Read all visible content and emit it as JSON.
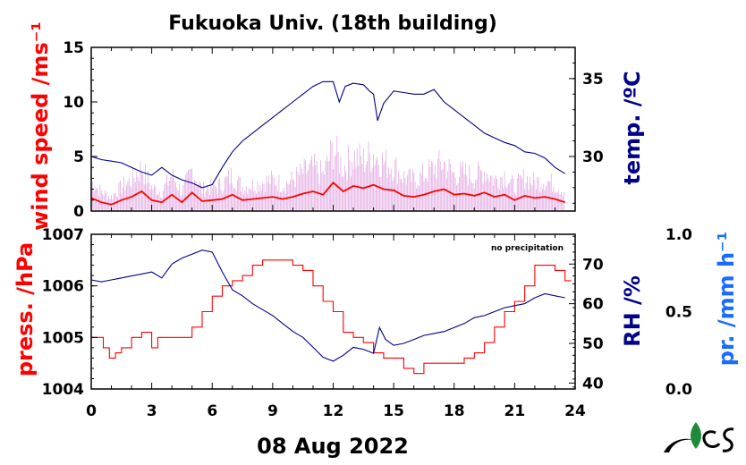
{
  "title": "Fukuoka Univ. (18th building)",
  "date_label": "08 Aug 2022",
  "colors": {
    "wind": "#ff0000",
    "wind_raw": "#cc66cc",
    "temp": "#00008b",
    "pressure": "#ff0000",
    "rh": "#00008b",
    "precip": "#1a6cff"
  },
  "top_panel": {
    "left_axis_label": "wind speed /ms⁻¹",
    "right_axis_label": "temp. /ºC"
  },
  "bottom_panel": {
    "left_axis_label": "press. /hPa",
    "right_axis_label": "RH /%",
    "far_right_axis_label": "pr. /mm h⁻¹",
    "annotation": "no precipitation"
  },
  "chart_data": [
    {
      "type": "line",
      "xlabel": "",
      "x_ticks": [
        "0",
        "3",
        "6",
        "9",
        "12",
        "15",
        "18",
        "21",
        "24"
      ],
      "xlim": [
        0,
        24
      ],
      "left_axis": {
        "label": "wind speed /ms⁻¹",
        "ylim": [
          0,
          15
        ],
        "ticks": [
          "0",
          "5",
          "10",
          "15"
        ]
      },
      "right_axis": {
        "label": "temp. /ºC",
        "ylim": [
          26.5,
          37
        ],
        "ticks": [
          "30",
          "35"
        ]
      },
      "series": [
        {
          "axis": "right",
          "color": "#00008b",
          "x": [
            0,
            0.5,
            1,
            1.5,
            2,
            2.5,
            3,
            3.5,
            4,
            4.5,
            5,
            5.5,
            6,
            6.5,
            7,
            7.5,
            8,
            8.5,
            9,
            9.5,
            10,
            10.5,
            11,
            11.5,
            12,
            12.3,
            12.6,
            13,
            13.5,
            13.8,
            14,
            14.2,
            14.5,
            15,
            15.5,
            16,
            16.5,
            17,
            17.5,
            18,
            18.5,
            19,
            19.5,
            20,
            20.5,
            21,
            21.5,
            22,
            22.5,
            23,
            23.5
          ],
          "y": [
            30.0,
            29.8,
            29.7,
            29.6,
            29.3,
            29.0,
            28.8,
            29.3,
            28.8,
            28.5,
            28.3,
            28.0,
            28.2,
            29.3,
            30.3,
            31.0,
            31.5,
            32.0,
            32.5,
            33.0,
            33.5,
            34.0,
            34.5,
            34.8,
            34.8,
            33.5,
            34.5,
            34.7,
            34.6,
            34.2,
            34.0,
            32.3,
            33.4,
            34.2,
            34.1,
            34.0,
            34.0,
            34.3,
            33.5,
            33.0,
            32.5,
            32.0,
            31.5,
            31.2,
            30.9,
            30.7,
            30.3,
            30.2,
            29.9,
            29.3,
            28.9
          ]
        },
        {
          "axis": "left",
          "color": "#ff0000",
          "x": [
            0,
            0.5,
            1,
            1.5,
            2,
            2.5,
            3,
            3.5,
            4,
            4.5,
            5,
            5.5,
            6,
            6.5,
            7,
            7.5,
            8,
            8.5,
            9,
            9.5,
            10,
            10.5,
            11,
            11.5,
            12,
            12.5,
            13,
            13.5,
            14,
            14.5,
            15,
            15.5,
            16,
            16.5,
            17,
            17.5,
            18,
            18.5,
            19,
            19.5,
            20,
            20.5,
            21,
            21.5,
            22,
            22.5,
            23,
            23.5
          ],
          "y": [
            1.2,
            0.8,
            0.6,
            1.0,
            1.3,
            1.8,
            1.0,
            0.8,
            1.5,
            0.8,
            1.7,
            0.9,
            1.0,
            1.1,
            1.5,
            1.0,
            1.1,
            1.2,
            1.3,
            1.1,
            1.3,
            1.6,
            1.8,
            1.5,
            2.6,
            1.8,
            2.3,
            2.1,
            2.4,
            2.0,
            1.9,
            1.4,
            1.3,
            1.5,
            1.8,
            2.0,
            1.5,
            1.6,
            1.4,
            1.7,
            1.3,
            1.5,
            1.0,
            1.4,
            1.2,
            1.3,
            1.1,
            0.8
          ]
        }
      ]
    },
    {
      "type": "line",
      "xlabel": "08 Aug 2022",
      "x_ticks": [
        "0",
        "3",
        "6",
        "9",
        "12",
        "15",
        "18",
        "21",
        "24"
      ],
      "xlim": [
        0,
        24
      ],
      "left_axis": {
        "label": "press. /hPa",
        "ylim": [
          1004,
          1007
        ],
        "ticks": [
          "1004",
          "1005",
          "1006",
          "1007"
        ]
      },
      "right_axis": {
        "label": "RH /%",
        "ylim": [
          38.5,
          77.5
        ],
        "ticks": [
          "40",
          "50",
          "60",
          "70"
        ]
      },
      "far_right_axis": {
        "label": "pr. /mm h⁻¹",
        "ylim": [
          0,
          1
        ],
        "ticks": [
          "0.0",
          "0.5",
          "1.0"
        ]
      },
      "series": [
        {
          "axis": "left",
          "color": "#ff0000",
          "x": [
            0,
            0.4,
            0.6,
            0.9,
            1.2,
            1.5,
            2.0,
            2.5,
            3.0,
            3.3,
            3.6,
            4.0,
            4.5,
            5.0,
            5.5,
            6.0,
            6.5,
            7.0,
            7.5,
            8.0,
            8.5,
            9.0,
            9.5,
            10.0,
            10.5,
            11.0,
            11.5,
            12.0,
            12.5,
            13.0,
            13.5,
            14.0,
            14.5,
            15.0,
            15.5,
            16.0,
            16.5,
            17.0,
            17.5,
            18.0,
            18.5,
            19.0,
            19.5,
            20.0,
            20.5,
            21.0,
            21.5,
            22.0,
            22.5,
            23.0,
            23.5,
            23.8
          ],
          "y": [
            1005.0,
            1005.0,
            1004.8,
            1004.6,
            1004.7,
            1004.8,
            1005.0,
            1005.1,
            1004.8,
            1005.0,
            1005.0,
            1005.0,
            1005.0,
            1005.2,
            1005.5,
            1005.8,
            1006.0,
            1006.1,
            1006.2,
            1006.4,
            1006.5,
            1006.5,
            1006.5,
            1006.4,
            1006.3,
            1006.0,
            1005.7,
            1005.5,
            1005.1,
            1005.0,
            1004.9,
            1004.7,
            1004.6,
            1004.6,
            1004.4,
            1004.3,
            1004.5,
            1004.5,
            1004.5,
            1004.5,
            1004.6,
            1004.7,
            1004.9,
            1005.2,
            1005.5,
            1005.7,
            1006.0,
            1006.4,
            1006.4,
            1006.3,
            1006.1,
            1006.1
          ]
        },
        {
          "axis": "right",
          "color": "#00008b",
          "x": [
            0,
            0.5,
            1,
            1.5,
            2,
            2.5,
            3,
            3.5,
            4,
            4.5,
            5,
            5.5,
            6,
            6.5,
            7,
            7.5,
            8,
            8.5,
            9,
            9.5,
            10,
            10.5,
            11,
            11.5,
            12,
            12.5,
            13,
            13.5,
            14,
            14.3,
            14.6,
            15,
            15.5,
            16,
            16.5,
            17,
            17.5,
            18,
            18.5,
            19,
            19.5,
            20,
            20.5,
            21,
            21.5,
            22,
            22.5,
            23,
            23.5
          ],
          "y": [
            66.0,
            65.5,
            66.0,
            66.5,
            67.0,
            67.5,
            68.0,
            66.5,
            70.0,
            71.5,
            72.5,
            73.5,
            73.0,
            68.0,
            63.5,
            62.0,
            60.0,
            58.5,
            57.0,
            55.0,
            53.0,
            51.5,
            49.0,
            46.5,
            45.5,
            47.0,
            49.0,
            48.5,
            47.5,
            54.0,
            51.0,
            49.5,
            50.0,
            51.0,
            52.0,
            52.5,
            53.0,
            54.0,
            55.0,
            56.5,
            57.0,
            58.0,
            59.0,
            59.5,
            60.0,
            61.5,
            62.5,
            62.0,
            61.5
          ]
        }
      ]
    }
  ]
}
